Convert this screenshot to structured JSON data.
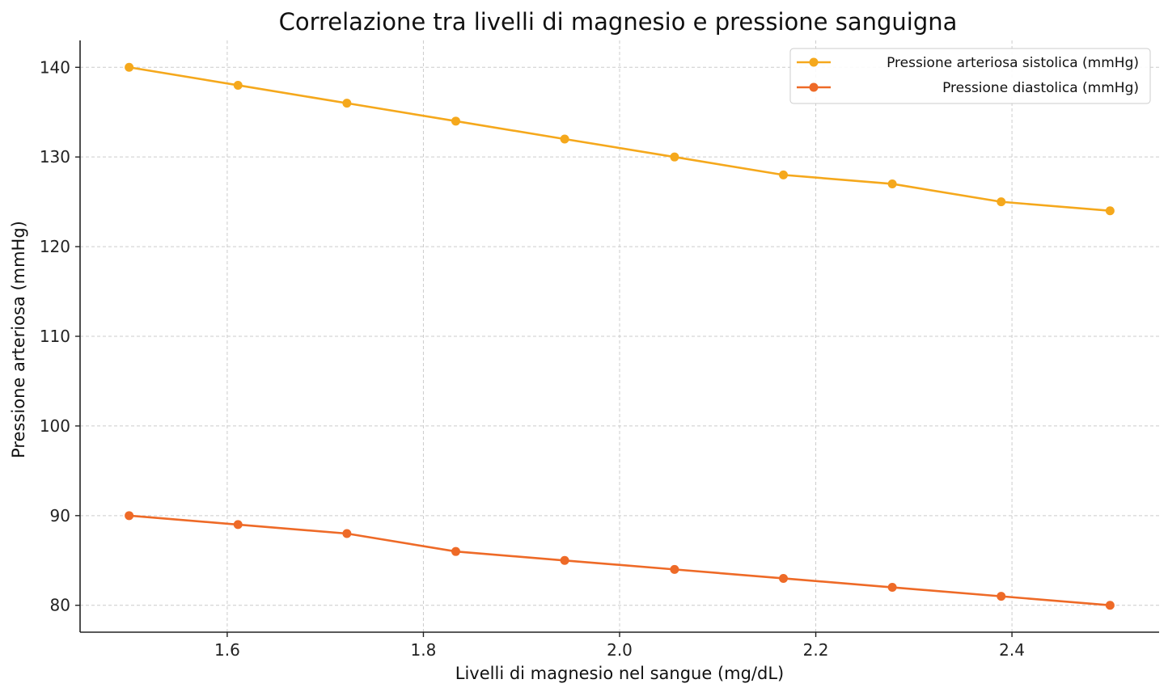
{
  "chart_data": {
    "type": "line",
    "title": "Correlazione tra livelli di magnesio e pressione sanguigna",
    "xlabel": "Livelli di magnesio nel sangue (mg/dL)",
    "ylabel": "Pressione arteriosa (mmHg)",
    "x": [
      1.5,
      1.611,
      1.722,
      1.833,
      1.944,
      2.056,
      2.167,
      2.278,
      2.389,
      2.5
    ],
    "xlim": [
      1.45,
      2.55
    ],
    "ylim": [
      77,
      143
    ],
    "xticks": [
      1.6,
      1.8,
      2.0,
      2.2,
      2.4
    ],
    "xtick_labels": [
      "1.6",
      "1.8",
      "2.0",
      "2.2",
      "2.4"
    ],
    "yticks": [
      80,
      90,
      100,
      110,
      120,
      130,
      140
    ],
    "ytick_labels": [
      "80",
      "90",
      "100",
      "110",
      "120",
      "130",
      "140"
    ],
    "grid": true,
    "legend_position": "top-right",
    "series": [
      {
        "name": "Pressione arteriosa sistolica (mmHg)",
        "color": "#f5a81c",
        "marker": "circle",
        "values": [
          140,
          138,
          136,
          134,
          132,
          130,
          128,
          127,
          125,
          124
        ]
      },
      {
        "name": "Pressione diastolica (mmHg)",
        "color": "#ee6a27",
        "marker": "circle",
        "values": [
          90,
          89,
          88,
          86,
          85,
          84,
          83,
          82,
          81,
          80
        ]
      }
    ]
  }
}
